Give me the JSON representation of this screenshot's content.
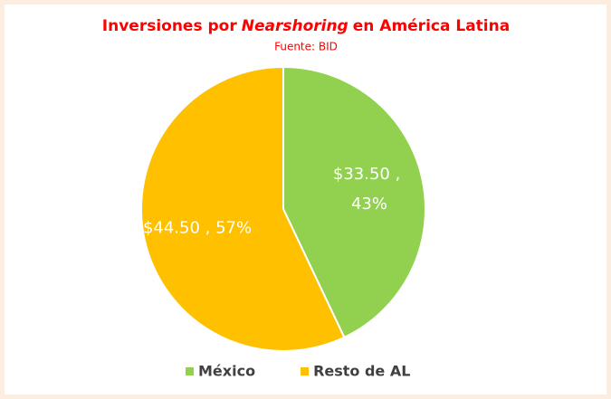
{
  "chart_data": {
    "type": "pie",
    "title": [
      "Inversiones por",
      "Nearshoring",
      "en América Latina"
    ],
    "title_italic": [
      false,
      true,
      false
    ],
    "subtitle": "Fuente: BID",
    "categories": [
      "México",
      "Resto de AL"
    ],
    "values": [
      33.5,
      44.5
    ],
    "value_labels": [
      "$33.50 , 43%",
      "$44.50 , 57%"
    ],
    "colors": [
      "#92d050",
      "#ffc000"
    ],
    "legend": "bottom"
  }
}
